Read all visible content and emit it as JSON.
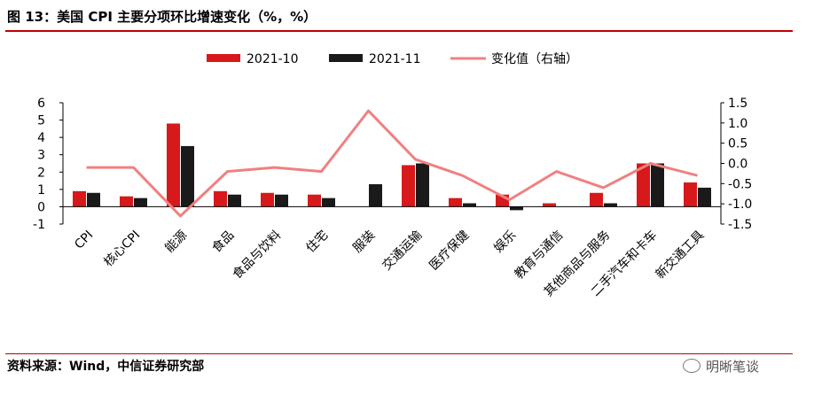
{
  "header": {
    "title": "图 13：美国 CPI 主要分项环比增速变化（%，%）"
  },
  "footer": {
    "source": "资料来源：Wind，中信证券研究部",
    "watermark": "明晰笔谈"
  },
  "colors": {
    "series_2021_10": "#d7191c",
    "series_2021_11": "#1a1a1a",
    "change_line": "#f08080",
    "rule": "#c00000"
  },
  "chart_data": {
    "type": "bar",
    "categories": [
      "CPI",
      "核心CPI",
      "能源",
      "食品",
      "食品与饮料",
      "住宅",
      "服装",
      "交通运输",
      "医疗保健",
      "娱乐",
      "教育与通信",
      "其他商品与服务",
      "二手汽车和卡车",
      "新交通工具"
    ],
    "series": [
      {
        "name": "2021-10",
        "axis": "left",
        "type": "bar",
        "values": [
          0.9,
          0.6,
          4.8,
          0.9,
          0.8,
          0.7,
          0.0,
          2.4,
          0.5,
          0.7,
          0.2,
          0.8,
          2.5,
          1.4
        ]
      },
      {
        "name": "2021-11",
        "axis": "left",
        "type": "bar",
        "values": [
          0.8,
          0.5,
          3.5,
          0.7,
          0.7,
          0.5,
          1.3,
          2.5,
          0.2,
          -0.2,
          0.0,
          0.2,
          2.5,
          1.1
        ]
      },
      {
        "name": "变化值（右轴）",
        "axis": "right",
        "type": "line",
        "values": [
          -0.1,
          -0.1,
          -1.3,
          -0.2,
          -0.1,
          -0.2,
          1.3,
          0.1,
          -0.3,
          -0.9,
          -0.2,
          -0.6,
          0.0,
          -0.3
        ]
      }
    ],
    "ylim_left": [
      -1,
      6
    ],
    "left_ticks": [
      "6",
      "5",
      "4",
      "3",
      "2",
      "1",
      "0",
      "-1"
    ],
    "ylim_right": [
      -1.5,
      1.5
    ],
    "right_ticks": [
      "1.5",
      "1.0",
      "0.5",
      "0.0",
      "-0.5",
      "-1.0",
      "-1.5"
    ],
    "legend": "top-center",
    "grid": false
  }
}
